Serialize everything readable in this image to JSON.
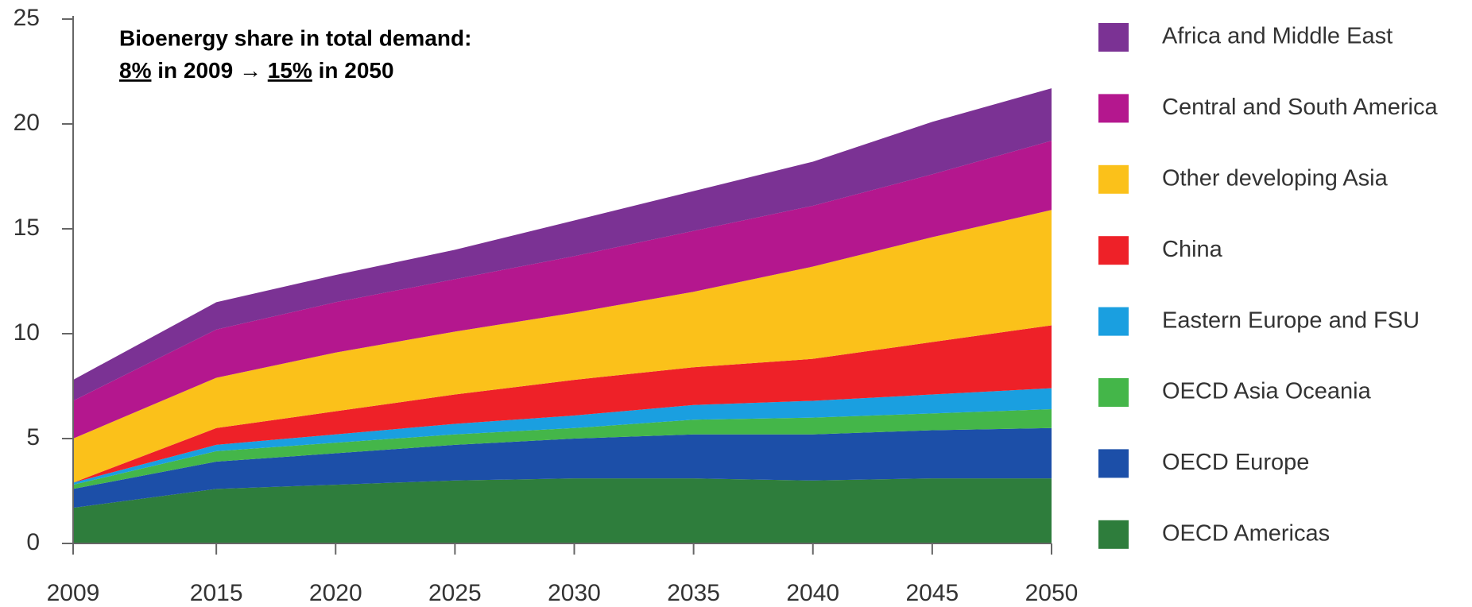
{
  "chart_data": {
    "type": "stacked-area",
    "annotation": {
      "line1": "Bioenergy share in total demand:",
      "line2": [
        "8%",
        " in 2009 → ",
        "15%",
        " in 2050"
      ],
      "underlined": [
        0,
        2
      ]
    },
    "x": [
      2009,
      2015,
      2020,
      2025,
      2030,
      2035,
      2040,
      2045,
      2050
    ],
    "xlim": [
      2009,
      2050
    ],
    "xticks": [
      2009,
      2015,
      2020,
      2025,
      2030,
      2035,
      2040,
      2045,
      2050
    ],
    "ylim": [
      0,
      25
    ],
    "yticks": [
      0,
      5,
      10,
      15,
      20,
      25
    ],
    "grid": false,
    "legend": "right",
    "series": [
      {
        "name": "OECD Americas",
        "color": "#2e7d3c",
        "values": [
          1.7,
          2.6,
          2.8,
          3.0,
          3.1,
          3.1,
          3.0,
          3.1,
          3.1
        ]
      },
      {
        "name": "OECD Europe",
        "color": "#1c4fa8",
        "values": [
          0.9,
          1.3,
          1.5,
          1.7,
          1.9,
          2.1,
          2.2,
          2.3,
          2.4
        ]
      },
      {
        "name": "OECD Asia Oceania",
        "color": "#44b649",
        "values": [
          0.2,
          0.5,
          0.5,
          0.5,
          0.5,
          0.7,
          0.8,
          0.8,
          0.9
        ]
      },
      {
        "name": "Eastern Europe and FSU",
        "color": "#1a9fe0",
        "values": [
          0.1,
          0.3,
          0.4,
          0.5,
          0.6,
          0.7,
          0.8,
          0.9,
          1.0
        ]
      },
      {
        "name": "China",
        "color": "#ee2128",
        "values": [
          0.0,
          0.8,
          1.1,
          1.4,
          1.7,
          1.8,
          2.0,
          2.5,
          3.0
        ]
      },
      {
        "name": "Other developing Asia",
        "color": "#fbc11a",
        "values": [
          2.1,
          2.4,
          2.8,
          3.0,
          3.2,
          3.6,
          4.4,
          5.0,
          5.5
        ]
      },
      {
        "name": "Central and South America",
        "color": "#b4178e",
        "values": [
          1.8,
          2.3,
          2.4,
          2.5,
          2.7,
          2.9,
          2.9,
          3.0,
          3.3
        ]
      },
      {
        "name": "Africa and Middle East",
        "color": "#7b3294",
        "values": [
          1.0,
          1.3,
          1.3,
          1.4,
          1.7,
          1.9,
          2.1,
          2.5,
          2.5
        ]
      }
    ]
  }
}
